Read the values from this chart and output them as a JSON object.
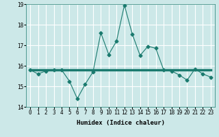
{
  "xlabel": "Humidex (Indice chaleur)",
  "x": [
    0,
    1,
    2,
    3,
    4,
    5,
    6,
    7,
    8,
    9,
    10,
    11,
    12,
    13,
    14,
    15,
    16,
    17,
    18,
    19,
    20,
    21,
    22,
    23
  ],
  "y_main": [
    15.8,
    15.6,
    15.75,
    15.8,
    15.8,
    15.25,
    14.4,
    15.1,
    15.7,
    17.6,
    16.55,
    17.2,
    18.95,
    17.55,
    16.5,
    16.95,
    16.85,
    15.8,
    15.75,
    15.55,
    15.3,
    15.85,
    15.6,
    15.45
  ],
  "x_flat": [
    0,
    5,
    6,
    7,
    8,
    9,
    10,
    11,
    12,
    13,
    14,
    15,
    16,
    17,
    18,
    19,
    20,
    21,
    22,
    23
  ],
  "y_flat": [
    15.8,
    15.8,
    15.8,
    15.8,
    15.8,
    15.8,
    15.8,
    15.8,
    15.8,
    15.8,
    15.8,
    15.8,
    15.8,
    15.8,
    15.8,
    15.8,
    15.8,
    15.8,
    15.8,
    15.8
  ],
  "ylim": [
    14,
    19
  ],
  "xlim": [
    -0.5,
    23.5
  ],
  "yticks": [
    14,
    15,
    16,
    17,
    18,
    19
  ],
  "xticks": [
    0,
    1,
    2,
    3,
    4,
    5,
    6,
    7,
    8,
    9,
    10,
    11,
    12,
    13,
    14,
    15,
    16,
    17,
    18,
    19,
    20,
    21,
    22,
    23
  ],
  "line_color": "#1a7a6e",
  "marker": "D",
  "marker_size": 2.5,
  "bg_color": "#cce8e8",
  "grid_color": "#ffffff",
  "label_fontsize": 6.5,
  "tick_fontsize": 5.5
}
